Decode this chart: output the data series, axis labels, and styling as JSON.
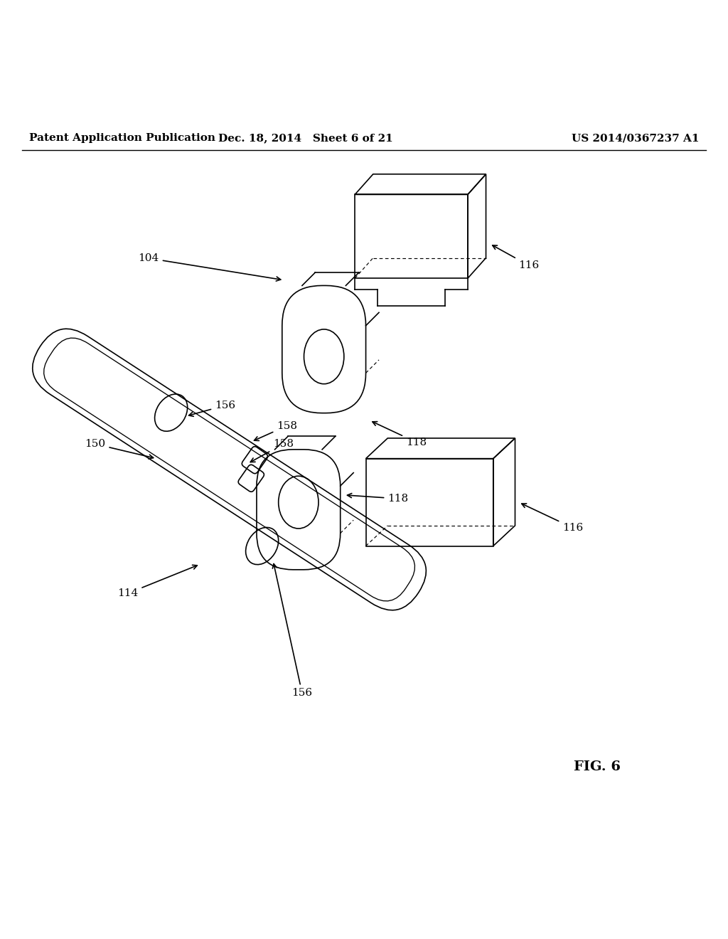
{
  "header_left": "Patent Application Publication",
  "header_center": "Dec. 18, 2014   Sheet 6 of 21",
  "header_right": "US 2014/0367237 A1",
  "fig_label": "FIG. 6",
  "background_color": "#ffffff",
  "line_color": "#000000",
  "header_fontsize": 11,
  "label_fontsize": 11,
  "fig_label_fontsize": 14
}
